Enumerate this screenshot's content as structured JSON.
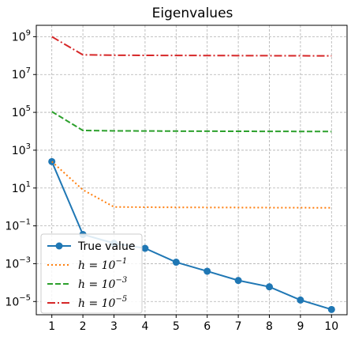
{
  "chart_data": {
    "type": "line",
    "title": "Eigenvalues",
    "xlabel": "",
    "ylabel": "",
    "x": [
      1,
      2,
      3,
      4,
      5,
      6,
      7,
      8,
      9,
      10
    ],
    "xticks": [
      "1",
      "2",
      "3",
      "4",
      "5",
      "6",
      "7",
      "8",
      "9",
      "10"
    ],
    "yscale": "log",
    "ylim": [
      2e-06,
      4000000000.0
    ],
    "yticks": [
      {
        "value": 1e-05,
        "base": "10",
        "exp": "−5"
      },
      {
        "value": 0.001,
        "base": "10",
        "exp": "−3"
      },
      {
        "value": 0.1,
        "base": "10",
        "exp": "−1"
      },
      {
        "value": 10.0,
        "base": "10",
        "exp": "1"
      },
      {
        "value": 1000.0,
        "base": "10",
        "exp": "3"
      },
      {
        "value": 100000.0,
        "base": "10",
        "exp": "5"
      },
      {
        "value": 10000000.0,
        "base": "10",
        "exp": "7"
      },
      {
        "value": 1000000000.0,
        "base": "10",
        "exp": "9"
      }
    ],
    "grid": true,
    "legend_position": "lower-left",
    "series": [
      {
        "name": "True value",
        "label_prefix": "",
        "label_exp": "",
        "color": "#1f77b4",
        "style": "solid-marker",
        "values": [
          250,
          0.035,
          0.012,
          0.0065,
          0.0012,
          0.0004,
          0.00013,
          6e-05,
          1.2e-05,
          3.8e-06
        ]
      },
      {
        "name": "h = 10^−1",
        "label_prefix": "h = 10",
        "label_exp": "−1",
        "color": "#ff7f0e",
        "style": "dotted",
        "values": [
          250,
          8,
          1.0,
          0.97,
          0.95,
          0.94,
          0.93,
          0.92,
          0.91,
          0.9
        ]
      },
      {
        "name": "h = 10^−3",
        "label_prefix": "h = 10",
        "label_exp": "−3",
        "color": "#2ca02c",
        "style": "dashed",
        "values": [
          110000,
          11000,
          10500,
          10400,
          10200,
          10100,
          10000,
          9900,
          9800,
          9700
        ]
      },
      {
        "name": "h = 10^−5",
        "label_prefix": "h = 10",
        "label_exp": "−5",
        "color": "#d62728",
        "style": "dashdot",
        "values": [
          1000000000,
          110000000,
          105000000,
          103000000,
          102000000,
          101000000,
          100000000,
          99000000,
          98000000,
          97000000
        ]
      }
    ]
  }
}
